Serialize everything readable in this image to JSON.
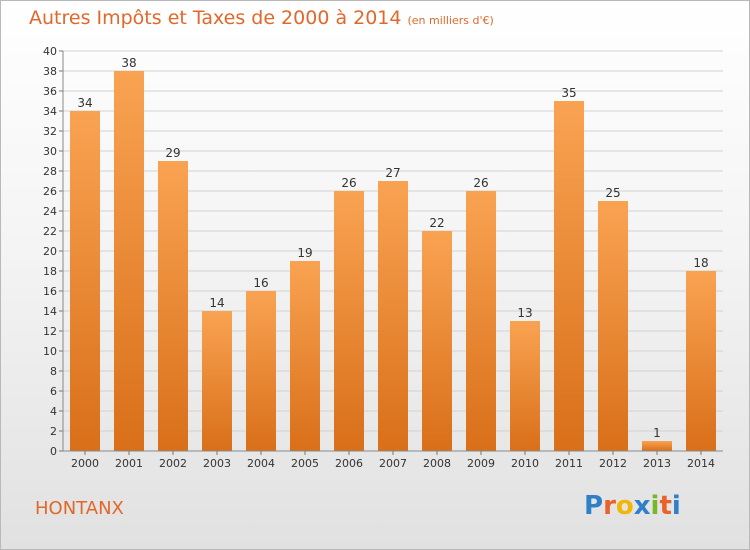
{
  "page": {
    "title": "Autres Impôts et Taxes de 2000 à 2014",
    "subtitle": "(en milliers d'€)",
    "commune": "HONTANX",
    "logo_text": "Proxiti"
  },
  "colors": {
    "accent": "#e1682a",
    "bar_light": "#f9a352",
    "bar_dark": "#d96f19",
    "logo_letters": [
      "#2f7fc9",
      "#e8622a",
      "#f2b705",
      "#2f7fc9",
      "#76b82a",
      "#e8622a",
      "#2f7fc9"
    ]
  },
  "chart_data": {
    "type": "bar",
    "categories": [
      "2000",
      "2001",
      "2002",
      "2003",
      "2004",
      "2005",
      "2006",
      "2007",
      "2008",
      "2009",
      "2010",
      "2011",
      "2012",
      "2013",
      "2014"
    ],
    "values": [
      34,
      38,
      29,
      14,
      16,
      19,
      26,
      27,
      22,
      26,
      13,
      35,
      25,
      1,
      18
    ],
    "title": "Autres Impôts et Taxes de 2000 à 2014",
    "subtitle": "(en milliers d'€)",
    "xlabel": "",
    "ylabel": "",
    "ylim": [
      0,
      40
    ],
    "yticks": [
      0,
      2,
      4,
      6,
      8,
      10,
      12,
      14,
      16,
      18,
      20,
      22,
      24,
      26,
      28,
      30,
      32,
      34,
      36,
      38,
      40
    ],
    "grid": true,
    "data_labels": true
  }
}
